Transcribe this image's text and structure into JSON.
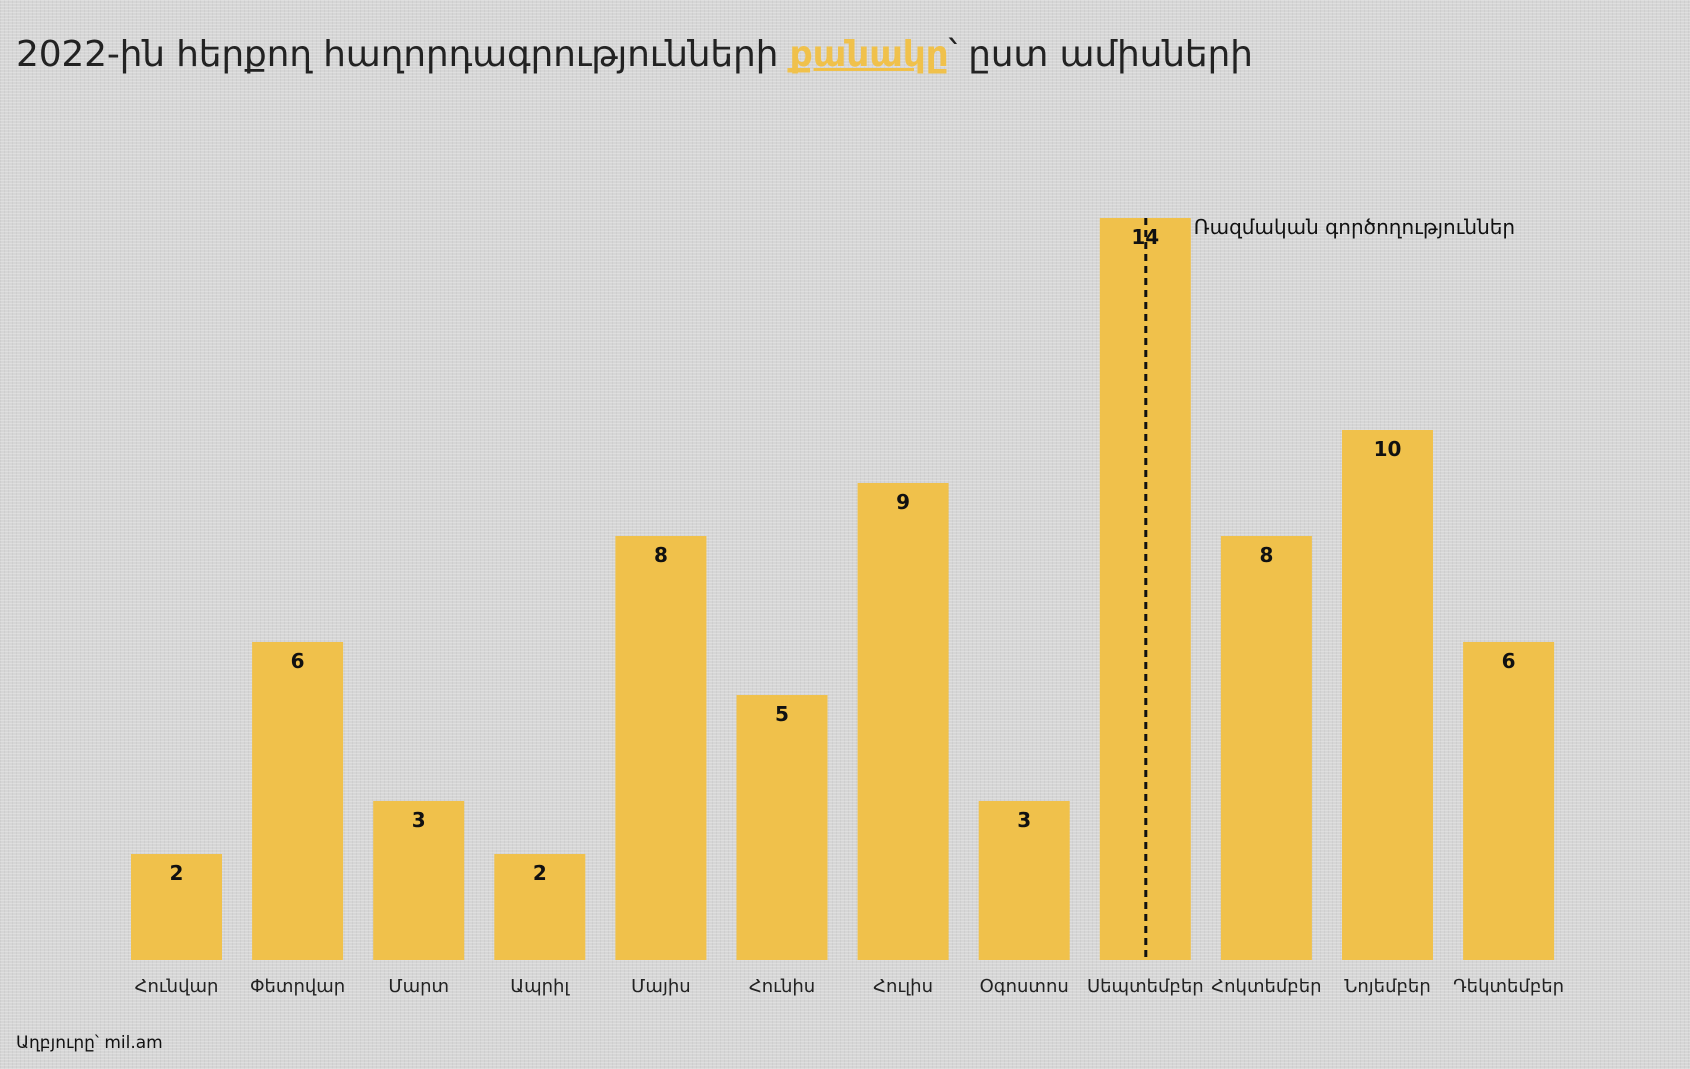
{
  "title": {
    "prefix": "2022-ին հերքող հաղորդագրությունների ",
    "highlight": "քանակը",
    "suffix": "՝ ըստ ամիսների"
  },
  "colors": {
    "bar": "#f0c14b",
    "highlight": "#f0c14b",
    "text": "#222222",
    "marker": "#111111"
  },
  "chart_data": {
    "type": "bar",
    "categories": [
      "Հունվար",
      "Փետրվար",
      "Մարտ",
      "Ապրիլ",
      "Մայիս",
      "Հունիս",
      "Հուլիս",
      "Օգոստոս",
      "Սեպտեմբեր",
      "Հոկտեմբեր",
      "Նոյեմբեր",
      "Դեկտեմբեր"
    ],
    "values": [
      2,
      6,
      3,
      2,
      8,
      5,
      9,
      3,
      14,
      8,
      10,
      6
    ],
    "data_labels": true,
    "ylim": [
      0,
      14
    ],
    "grid": false,
    "annotation": {
      "category": "Սեպտեմբեր",
      "text": "Ռազմական գործողություններ",
      "line": "dashed vertical"
    }
  },
  "source": "Աղբյուրը՝ mil.am"
}
